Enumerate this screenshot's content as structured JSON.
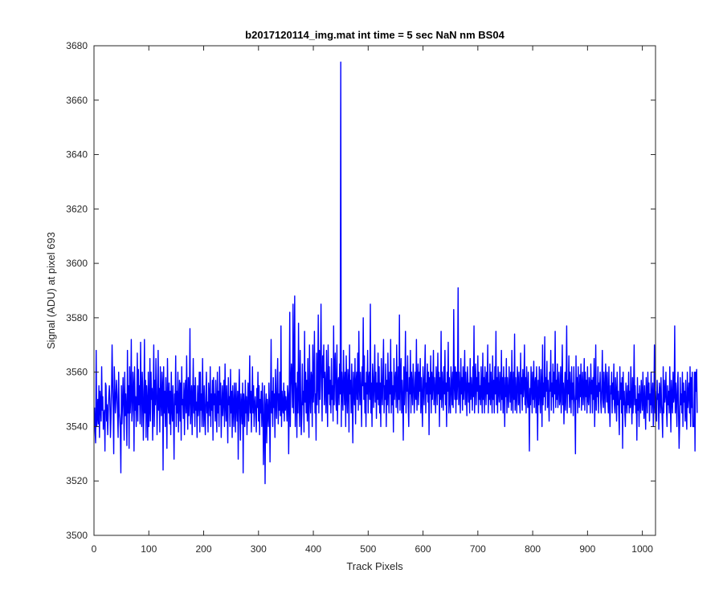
{
  "chart_data": {
    "type": "line",
    "title": "b2017120114_img.mat int time = 5 sec  NaN nm BS04",
    "xlabel": "Track Pixels",
    "ylabel": "Signal (ADU) at pixel 693",
    "xlim": [
      0,
      1024
    ],
    "ylim": [
      3500,
      3680
    ],
    "xticks": [
      0,
      100,
      200,
      300,
      400,
      500,
      600,
      700,
      800,
      900,
      1000
    ],
    "yticks": [
      3500,
      3520,
      3540,
      3560,
      3580,
      3600,
      3620,
      3640,
      3660,
      3680
    ],
    "grid": false,
    "legend": "none",
    "series": [
      {
        "color": "#0000ff",
        "x_start": 1,
        "x_step": 1,
        "y": [
          3547,
          3538,
          3534,
          3568,
          3540,
          3543,
          3550,
          3541,
          3555,
          3536,
          3553,
          3548,
          3542,
          3562,
          3546,
          3551,
          3539,
          3544,
          3546,
          3531,
          3556,
          3555,
          3542,
          3548,
          3537,
          3545,
          3551,
          3555,
          3550,
          3536,
          3543,
          3553,
          3570,
          3557,
          3546,
          3530,
          3562,
          3555,
          3545,
          3550,
          3557,
          3552,
          3545,
          3536,
          3560,
          3545,
          3543,
          3539,
          3523,
          3555,
          3541,
          3548,
          3558,
          3549,
          3535,
          3560,
          3544,
          3552,
          3545,
          3533,
          3568,
          3545,
          3555,
          3532,
          3562,
          3545,
          3551,
          3572,
          3542,
          3546,
          3560,
          3555,
          3531,
          3562,
          3546,
          3551,
          3540,
          3548,
          3567,
          3542,
          3561,
          3548,
          3555,
          3541,
          3571,
          3552,
          3540,
          3560,
          3553,
          3535,
          3546,
          3572,
          3545,
          3557,
          3536,
          3555,
          3549,
          3535,
          3560,
          3540,
          3546,
          3565,
          3542,
          3560,
          3550,
          3554,
          3535,
          3550,
          3570,
          3540,
          3557,
          3548,
          3565,
          3553,
          3537,
          3548,
          3568,
          3546,
          3554,
          3538,
          3562,
          3550,
          3544,
          3560,
          3555,
          3524,
          3562,
          3545,
          3553,
          3540,
          3558,
          3548,
          3532,
          3565,
          3550,
          3545,
          3556,
          3541,
          3553,
          3537,
          3560,
          3547,
          3542,
          3555,
          3545,
          3528,
          3552,
          3548,
          3566,
          3540,
          3553,
          3545,
          3560,
          3538,
          3549,
          3557,
          3542,
          3556,
          3535,
          3562,
          3548,
          3550,
          3543,
          3556,
          3537,
          3552,
          3557,
          3545,
          3566,
          3548,
          3539,
          3558,
          3544,
          3550,
          3576,
          3541,
          3548,
          3555,
          3537,
          3550,
          3565,
          3545,
          3555,
          3540,
          3558,
          3546,
          3549,
          3536,
          3555,
          3544,
          3548,
          3560,
          3538,
          3560,
          3546,
          3552,
          3540,
          3565,
          3548,
          3540,
          3555,
          3545,
          3537,
          3551,
          3560,
          3545,
          3549,
          3538,
          3556,
          3551,
          3544,
          3562,
          3540,
          3552,
          3546,
          3557,
          3535,
          3558,
          3548,
          3552,
          3542,
          3557,
          3546,
          3538,
          3560,
          3545,
          3553,
          3540,
          3562,
          3548,
          3556,
          3536,
          3547,
          3555,
          3544,
          3550,
          3557,
          3540,
          3563,
          3548,
          3542,
          3555,
          3546,
          3534,
          3558,
          3548,
          3551,
          3540,
          3561,
          3545,
          3553,
          3536,
          3555,
          3547,
          3540,
          3556,
          3549,
          3538,
          3556,
          3548,
          3542,
          3553,
          3528,
          3550,
          3561,
          3545,
          3535,
          3552,
          3548,
          3541,
          3556,
          3523,
          3552,
          3547,
          3540,
          3557,
          3545,
          3551,
          3537,
          3548,
          3556,
          3542,
          3550,
          3566,
          3545,
          3553,
          3538,
          3549,
          3562,
          3545,
          3555,
          3540,
          3548,
          3551,
          3545,
          3538,
          3554,
          3547,
          3560,
          3542,
          3555,
          3537,
          3550,
          3545,
          3553,
          3540,
          3556,
          3548,
          3526,
          3541,
          3555,
          3519,
          3547,
          3552,
          3534,
          3550,
          3545,
          3540,
          3556,
          3548,
          3527,
          3550,
          3572,
          3545,
          3553,
          3540,
          3558,
          3547,
          3552,
          3536,
          3561,
          3549,
          3543,
          3555,
          3565,
          3541,
          3552,
          3546,
          3560,
          3544,
          3577,
          3540,
          3553,
          3547,
          3545,
          3556,
          3542,
          3553,
          3546,
          3551,
          3548,
          3542,
          3555,
          3552,
          3530,
          3548,
          3582,
          3540,
          3555,
          3563,
          3558,
          3547,
          3585,
          3545,
          3562,
          3588,
          3540,
          3556,
          3553,
          3536,
          3560,
          3545,
          3578,
          3552,
          3540,
          3568,
          3550,
          3537,
          3545,
          3563,
          3548,
          3553,
          3538,
          3575,
          3549,
          3560,
          3545,
          3557,
          3542,
          3565,
          3548,
          3536,
          3570,
          3552,
          3545,
          3560,
          3558,
          3540,
          3570,
          3549,
          3555,
          3575,
          3545,
          3552,
          3535,
          3567,
          3548,
          3556,
          3581,
          3545,
          3568,
          3550,
          3563,
          3585,
          3555,
          3542,
          3566,
          3558,
          3570,
          3548,
          3560,
          3555,
          3545,
          3568,
          3553,
          3540,
          3570,
          3552,
          3562,
          3548,
          3557,
          3545,
          3565,
          3550,
          3555,
          3542,
          3577,
          3548,
          3562,
          3567,
          3550,
          3546,
          3570,
          3541,
          3556,
          3558,
          3548,
          3563,
          3552,
          3674,
          3540,
          3560,
          3553,
          3546,
          3568,
          3555,
          3548,
          3560,
          3540,
          3566,
          3553,
          3545,
          3561,
          3557,
          3538,
          3570,
          3552,
          3557,
          3545,
          3563,
          3550,
          3534,
          3560,
          3555,
          3548,
          3565,
          3541,
          3556,
          3560,
          3550,
          3567,
          3546,
          3575,
          3555,
          3548,
          3560,
          3553,
          3540,
          3562,
          3555,
          3580,
          3550,
          3566,
          3545,
          3556,
          3540,
          3560,
          3552,
          3568,
          3545,
          3557,
          3560,
          3550,
          3585,
          3545,
          3556,
          3540,
          3563,
          3558,
          3547,
          3555,
          3570,
          3549,
          3560,
          3543,
          3556,
          3550,
          3567,
          3548,
          3562,
          3545,
          3556,
          3540,
          3565,
          3553,
          3548,
          3560,
          3572,
          3545,
          3555,
          3550,
          3563,
          3540,
          3557,
          3548,
          3567,
          3553,
          3545,
          3560,
          3552,
          3572,
          3545,
          3560,
          3548,
          3555,
          3538,
          3565,
          3550,
          3556,
          3560,
          3547,
          3570,
          3553,
          3545,
          3562,
          3550,
          3581,
          3546,
          3558,
          3565,
          3545,
          3557,
          3550,
          3535,
          3562,
          3548,
          3556,
          3575,
          3545,
          3560,
          3553,
          3566,
          3548,
          3540,
          3558,
          3552,
          3568,
          3545,
          3560,
          3555,
          3548,
          3563,
          3557,
          3545,
          3552,
          3560,
          3550,
          3572,
          3546,
          3556,
          3563,
          3548,
          3560,
          3553,
          3565,
          3545,
          3558,
          3550,
          3540,
          3562,
          3555,
          3548,
          3560,
          3570,
          3545,
          3556,
          3552,
          3563,
          3549,
          3560,
          3537,
          3558,
          3552,
          3566,
          3545,
          3560,
          3550,
          3555,
          3568,
          3548,
          3558,
          3553,
          3545,
          3562,
          3556,
          3548,
          3567,
          3552,
          3560,
          3540,
          3558,
          3550,
          3575,
          3547,
          3560,
          3554,
          3546,
          3562,
          3552,
          3568,
          3548,
          3556,
          3540,
          3560,
          3553,
          3571,
          3545,
          3558,
          3550,
          3545,
          3562,
          3555,
          3548,
          3560,
          3547,
          3583,
          3555,
          3550,
          3562,
          3545,
          3560,
          3550,
          3556,
          3591,
          3548,
          3560,
          3553,
          3545,
          3565,
          3552,
          3558,
          3546,
          3562,
          3550,
          3555,
          3568,
          3548,
          3560,
          3553,
          3544,
          3562,
          3557,
          3549,
          3556,
          3545,
          3565,
          3550,
          3558,
          3553,
          3546,
          3562,
          3551,
          3577,
          3545,
          3556,
          3563,
          3548,
          3558,
          3553,
          3566,
          3545,
          3560,
          3550,
          3555,
          3548,
          3562,
          3553,
          3545,
          3567,
          3550,
          3558,
          3545,
          3562,
          3555,
          3548,
          3560,
          3552,
          3570,
          3545,
          3556,
          3550,
          3563,
          3548,
          3560,
          3553,
          3545,
          3566,
          3550,
          3557,
          3545,
          3562,
          3552,
          3575,
          3548,
          3558,
          3545,
          3562,
          3553,
          3549,
          3560,
          3555,
          3546,
          3568,
          3550,
          3558,
          3545,
          3562,
          3553,
          3540,
          3558,
          3551,
          3565,
          3545,
          3558,
          3552,
          3547,
          3562,
          3555,
          3549,
          3560,
          3546,
          3568,
          3553,
          3545,
          3560,
          3550,
          3574,
          3546,
          3558,
          3552,
          3545,
          3562,
          3557,
          3548,
          3560,
          3550,
          3545,
          3567,
          3552,
          3558,
          3546,
          3561,
          3551,
          3555,
          3570,
          3548,
          3558,
          3545,
          3562,
          3553,
          3547,
          3560,
          3550,
          3531,
          3554,
          3548,
          3562,
          3556,
          3545,
          3560,
          3550,
          3564,
          3547,
          3555,
          3558,
          3545,
          3562,
          3553,
          3535,
          3557,
          3548,
          3562,
          3552,
          3545,
          3561,
          3555,
          3540,
          3570,
          3548,
          3556,
          3551,
          3573,
          3546,
          3558,
          3553,
          3564,
          3547,
          3557,
          3550,
          3542,
          3560,
          3553,
          3568,
          3546,
          3556,
          3551,
          3563,
          3545,
          3560,
          3552,
          3575,
          3547,
          3557,
          3550,
          3563,
          3547,
          3555,
          3560,
          3548,
          3550,
          3562,
          3545,
          3555,
          3570,
          3548,
          3556,
          3541,
          3552,
          3560,
          3546,
          3555,
          3577,
          3545,
          3557,
          3552,
          3566,
          3547,
          3560,
          3553,
          3545,
          3562,
          3550,
          3556,
          3544,
          3562,
          3552,
          3548,
          3530,
          3566,
          3550,
          3558,
          3545,
          3562,
          3553,
          3547,
          3559,
          3551,
          3563,
          3546,
          3555,
          3560,
          3548,
          3553,
          3565,
          3546,
          3560,
          3551,
          3557,
          3545,
          3562,
          3550,
          3548,
          3558,
          3555,
          3545,
          3563,
          3552,
          3557,
          3545,
          3558,
          3550,
          3565,
          3540,
          3552,
          3570,
          3546,
          3555,
          3551,
          3562,
          3545,
          3556,
          3553,
          3560,
          3549,
          3545,
          3555,
          3568,
          3550,
          3547,
          3560,
          3553,
          3545,
          3563,
          3556,
          3549,
          3560,
          3550,
          3545,
          3562,
          3548,
          3540,
          3555,
          3552,
          3560,
          3545,
          3556,
          3550,
          3563,
          3548,
          3545,
          3558,
          3552,
          3542,
          3560,
          3548,
          3553,
          3545,
          3537,
          3562,
          3550,
          3556,
          3545,
          3558,
          3532,
          3560,
          3548,
          3553,
          3545,
          3540,
          3556,
          3550,
          3545,
          3555,
          3548,
          3560,
          3545,
          3553,
          3547,
          3562,
          3550,
          3541,
          3558,
          3545,
          3552,
          3570,
          3548,
          3555,
          3545,
          3550,
          3535,
          3558,
          3546,
          3552,
          3540,
          3555,
          3549,
          3545,
          3557,
          3552,
          3546,
          3560,
          3549,
          3543,
          3555,
          3548,
          3539,
          3558,
          3552,
          3545,
          3560,
          3550,
          3556,
          3542,
          3552,
          3548,
          3560,
          3545,
          3551,
          3556,
          3540,
          3548,
          3570,
          3545,
          3553,
          3548,
          3542,
          3557,
          3550,
          3552,
          3539,
          3556,
          3553,
          3545,
          3558,
          3548,
          3544,
          3536,
          3562,
          3545,
          3557,
          3549,
          3552,
          3560,
          3546,
          3540,
          3555,
          3548,
          3553,
          3545,
          3562,
          3550,
          3538,
          3557,
          3550,
          3545,
          3560,
          3549,
          3551,
          3577,
          3545,
          3556,
          3550,
          3540,
          3555,
          3560,
          3545,
          3532,
          3541,
          3558,
          3548,
          3552,
          3545,
          3560,
          3540,
          3556,
          3549,
          3553,
          3542,
          3557,
          3545,
          3539,
          3560,
          3547,
          3552,
          3556,
          3545,
          3562,
          3540,
          3558,
          3547,
          3560,
          3540,
          3540,
          3540,
          3560,
          3531,
          3560,
          3553,
          3561,
          3545
        ]
      }
    ]
  }
}
